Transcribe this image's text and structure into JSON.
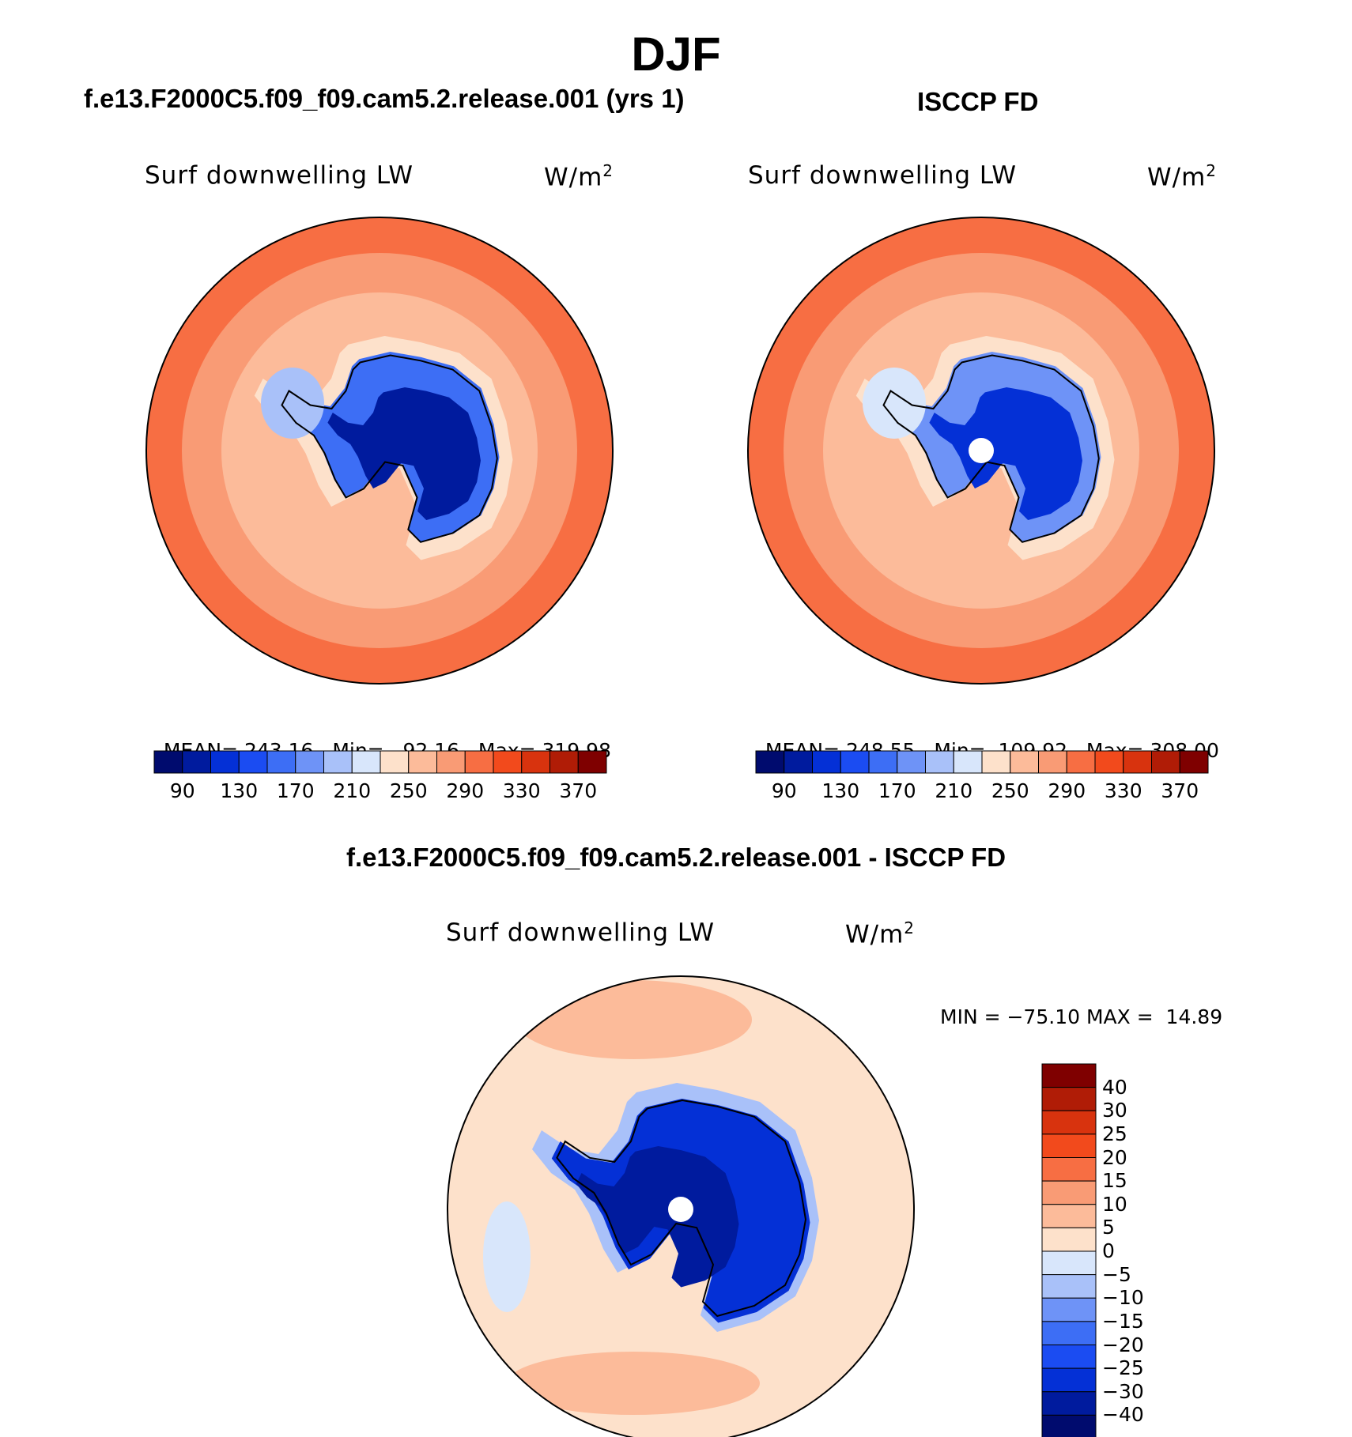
{
  "main_title": "DJF",
  "panels": [
    {
      "title": "f.e13.F2000C5.f09_f09.cam5.2.release.001 (yrs 1)",
      "variable": "Surf downwelling LW",
      "units": "W/m",
      "units_sup": "2",
      "stats": {
        "mean_label": "MEAN=",
        "mean": "243.16",
        "min_label": "Min=",
        "min": "92.16",
        "max_label": "Max=",
        "max": "319.98"
      }
    },
    {
      "title": "ISCCP FD",
      "variable": "Surf downwelling LW",
      "units": "W/m",
      "units_sup": "2",
      "stats": {
        "mean_label": "MEAN=",
        "mean": "248.55",
        "min_label": "Min=",
        "min": "109.92",
        "max_label": "Max=",
        "max": "308.00"
      }
    },
    {
      "title": "f.e13.F2000C5.f09_f09.cam5.2.release.001 - ISCCP FD",
      "variable": "Surf downwelling LW",
      "units": "W/m",
      "units_sup": "2",
      "stats": {
        "text": "MIN = −75.10 MAX =  14.89"
      }
    }
  ],
  "chart_data": [
    {
      "type": "heatmap",
      "projection": "south-polar-stereographic",
      "colorbar": {
        "orientation": "horizontal",
        "levels": [
          90,
          130,
          170,
          210,
          250,
          290,
          330,
          370
        ],
        "colors": [
          "#000b6e",
          "#001b9e",
          "#0430d6",
          "#1b4cf2",
          "#3d6ef5",
          "#6e93f7",
          "#a9c1f9",
          "#d8e6fb",
          "#fde1cb",
          "#fcbb9a",
          "#f99b75",
          "#f76e43",
          "#f24a1c",
          "#d8330e",
          "#b01c06",
          "#7f0000"
        ]
      },
      "field_colors": {
        "open_ocean": "#f76e43",
        "mid_ocean": "#f99b75",
        "coast": "#fcbb9a",
        "ice_edge": "#fde1cb",
        "interior": "#001b9e",
        "margin": "#3d6ef5",
        "ross": "#a9c1f9"
      }
    },
    {
      "type": "heatmap",
      "projection": "south-polar-stereographic",
      "colorbar": {
        "orientation": "horizontal",
        "levels": [
          90,
          130,
          170,
          210,
          250,
          290,
          330,
          370
        ],
        "colors": [
          "#000b6e",
          "#001b9e",
          "#0430d6",
          "#1b4cf2",
          "#3d6ef5",
          "#6e93f7",
          "#a9c1f9",
          "#d8e6fb",
          "#fde1cb",
          "#fcbb9a",
          "#f99b75",
          "#f76e43",
          "#f24a1c",
          "#d8330e",
          "#b01c06",
          "#7f0000"
        ]
      },
      "field_colors": {
        "open_ocean": "#f76e43",
        "mid_ocean": "#f99b75",
        "coast": "#fcbb9a",
        "ice_edge": "#fde1cb",
        "interior": "#0430d6",
        "margin": "#6e93f7",
        "ross": "#d8e6fb"
      }
    },
    {
      "type": "heatmap",
      "projection": "south-polar-stereographic",
      "colorbar": {
        "orientation": "vertical",
        "levels": [
          "40",
          "30",
          "25",
          "20",
          "15",
          "10",
          "5",
          "0",
          "−5",
          "−10",
          "−15",
          "−20",
          "−25",
          "−30",
          "−40"
        ],
        "colors": [
          "#7f0000",
          "#b01c06",
          "#d8330e",
          "#f24a1c",
          "#f76e43",
          "#f99b75",
          "#fcbb9a",
          "#fde1cb",
          "#d8e6fb",
          "#a9c1f9",
          "#6e93f7",
          "#3d6ef5",
          "#1b4cf2",
          "#0430d6",
          "#001b9e",
          "#000b6e"
        ]
      },
      "field_colors": {
        "ocean": "#fde1cb",
        "ocean_warm": "#fcbb9a",
        "ocean_cool": "#d8e6fb",
        "ice_edge": "#a9c1f9",
        "interior": "#0430d6",
        "deep": "#001b9e"
      }
    }
  ]
}
